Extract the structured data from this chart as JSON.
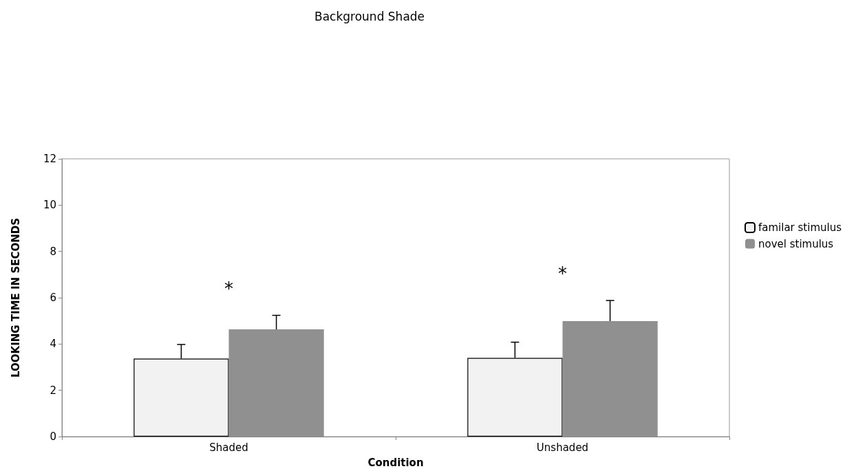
{
  "chart_data": {
    "type": "bar",
    "title": "Background Shade",
    "xlabel": "Condition",
    "ylabel": "LOOKING TIME IN SECONDS",
    "categories": [
      "Shaded",
      "Unshaded"
    ],
    "series": [
      {
        "name": "familar stimulus",
        "color": "#f2f2f2",
        "values": [
          3.37,
          3.4
        ],
        "errors": [
          [
            3.37,
            3.98
          ],
          [
            3.4,
            4.08
          ]
        ]
      },
      {
        "name": "novel stimulus",
        "color": "#909090",
        "values": [
          4.63,
          4.99
        ],
        "errors": [
          [
            4.63,
            5.24
          ],
          [
            4.99,
            5.88
          ]
        ]
      }
    ],
    "ylim": [
      0,
      12
    ],
    "yticks": [
      0,
      2,
      4,
      6,
      8,
      10,
      12
    ],
    "grid": false,
    "legend": "right",
    "annotations": [
      "*",
      "*"
    ]
  }
}
